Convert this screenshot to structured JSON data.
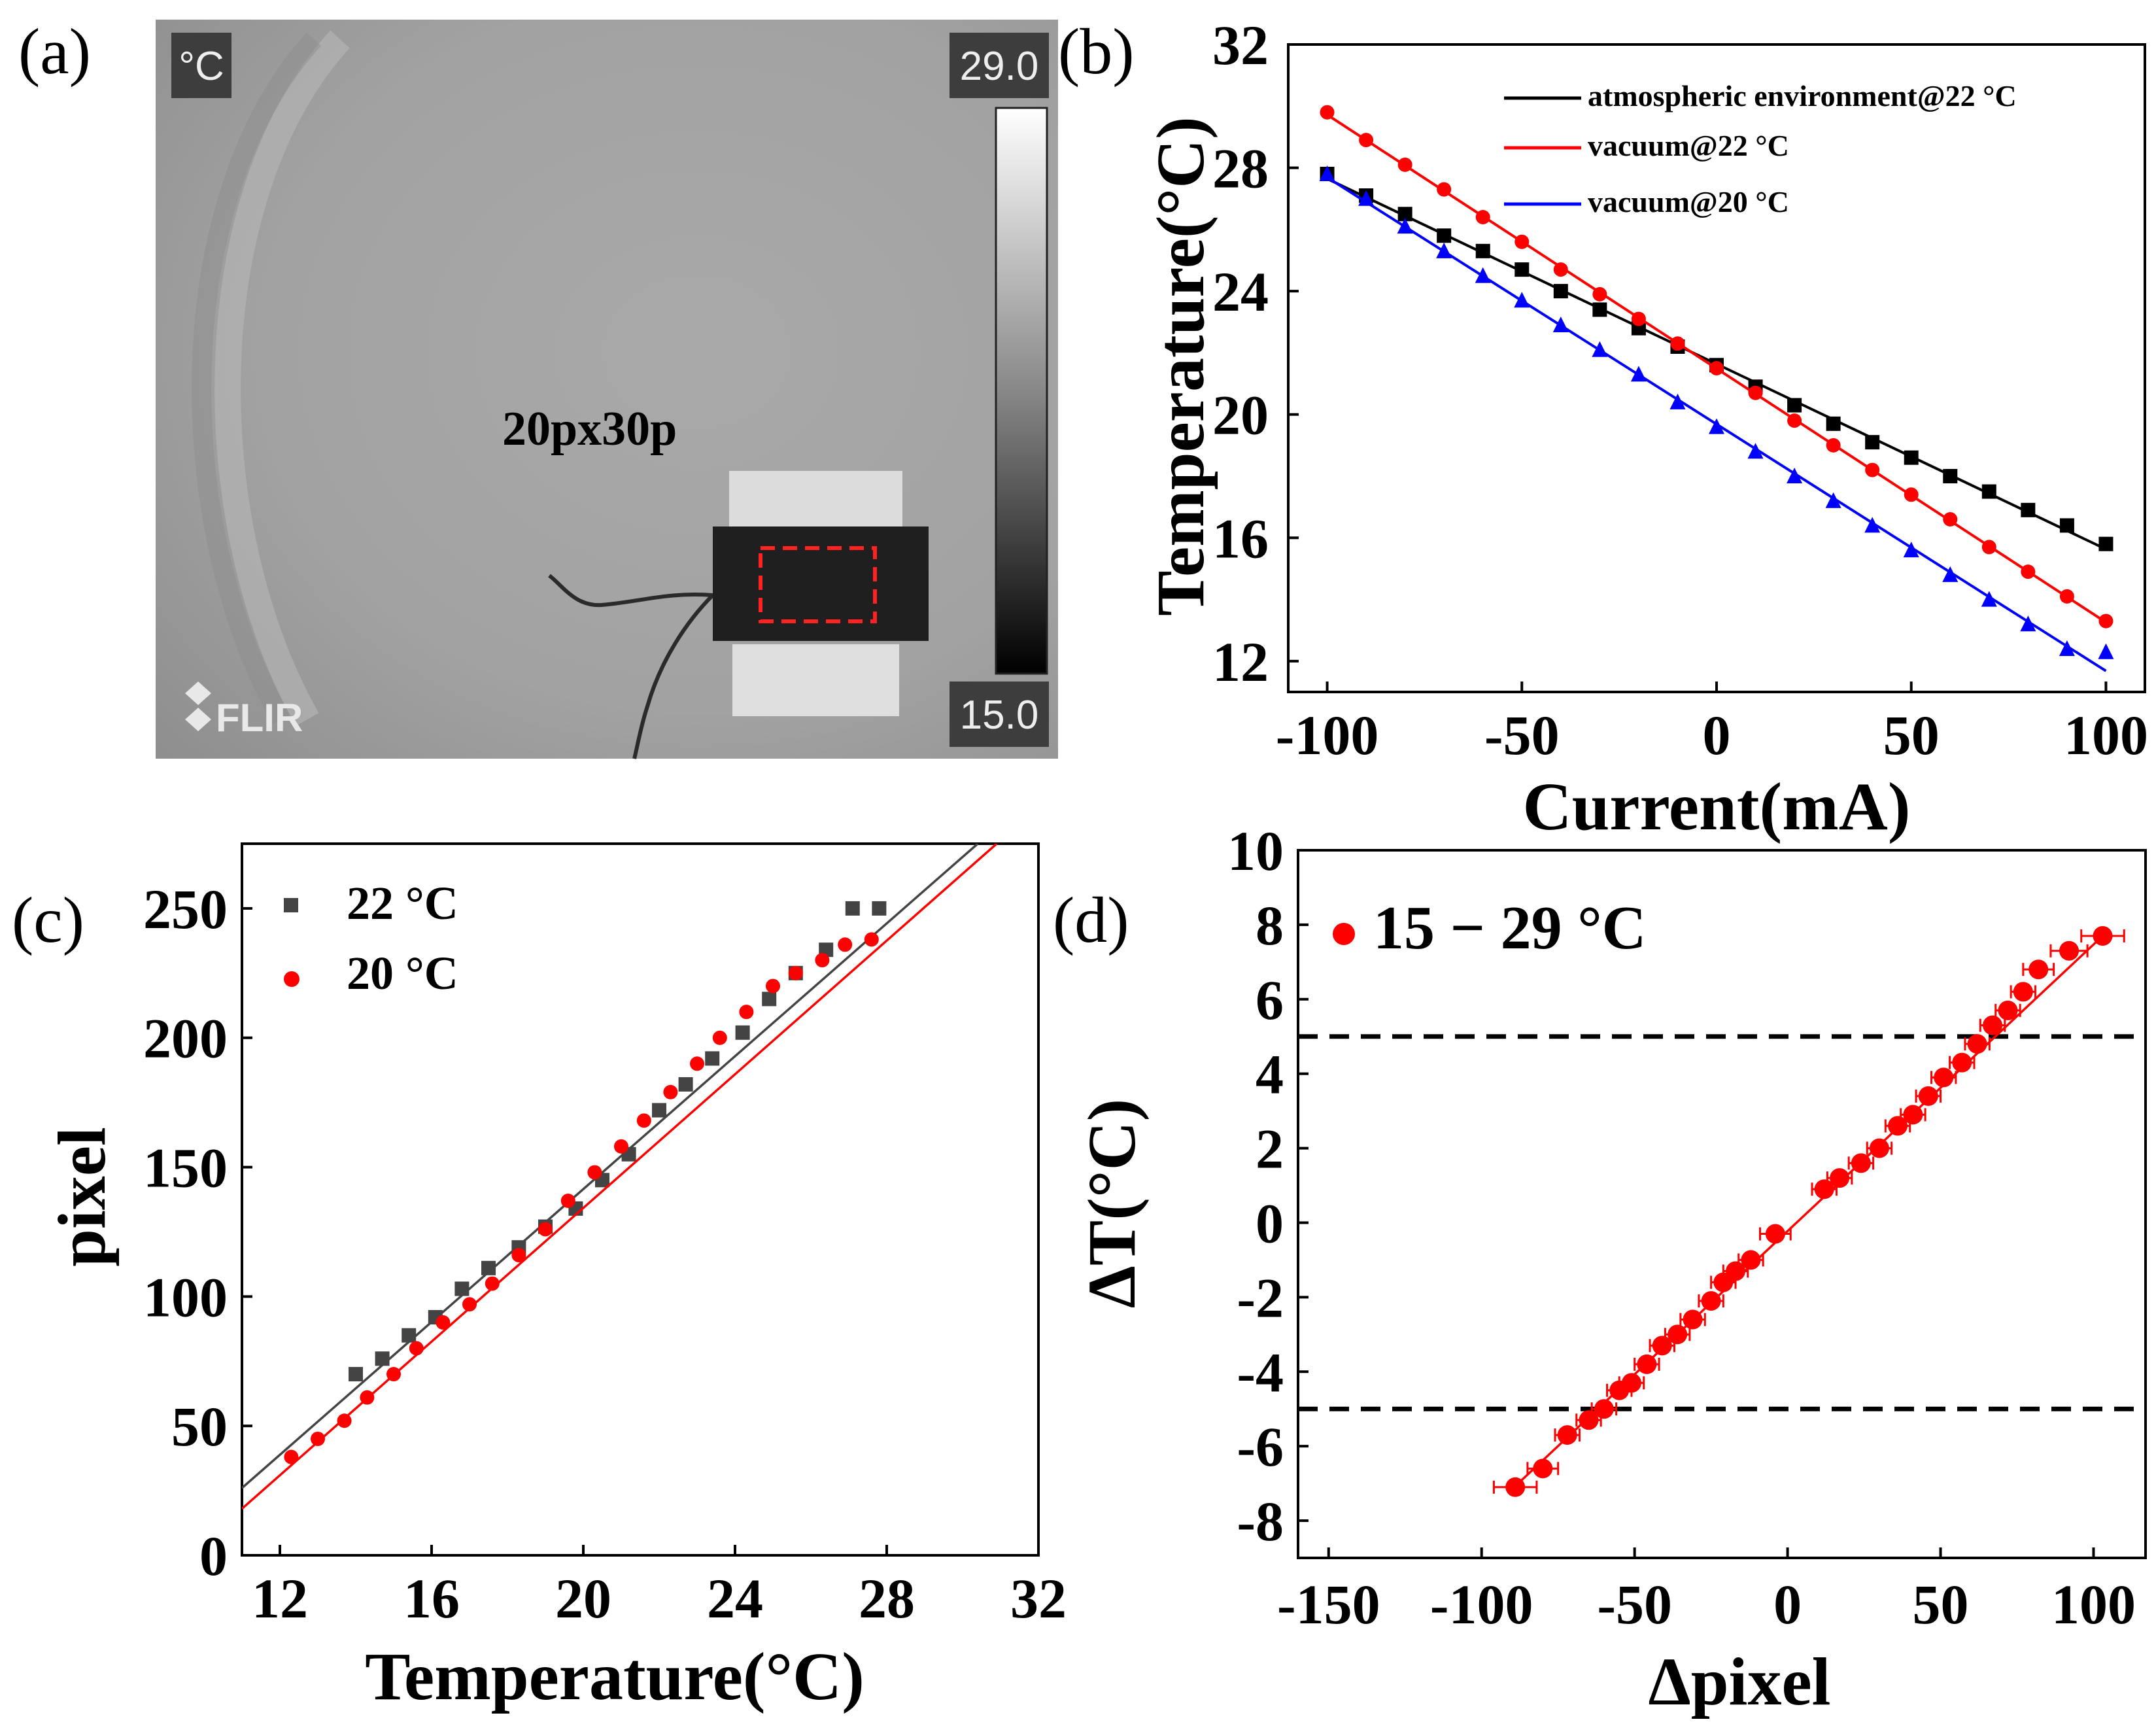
{
  "panel_a": {
    "label": "(a)",
    "unit": "°C",
    "scale_max": "29.0",
    "scale_min": "15.0",
    "roi_text": "20px30p",
    "logo": "FLIR",
    "colors": {
      "roi": "#ff2222",
      "background": "#a8a8a8"
    }
  },
  "chart_data": [
    {
      "id": "b",
      "panel_label": "(b)",
      "type": "line",
      "xlabel": "Current(mA)",
      "ylabel": "Temperature(°C)",
      "xlim": [
        -110,
        110
      ],
      "ylim": [
        11,
        32
      ],
      "xticks": [
        "-100",
        "-50",
        "0",
        "50",
        "100"
      ],
      "xtick_values": [
        -100,
        -50,
        0,
        50,
        100
      ],
      "yticks": [
        "12",
        "16",
        "20",
        "24",
        "28",
        "32"
      ],
      "ytick_values": [
        12,
        16,
        20,
        24,
        28,
        32
      ],
      "legend_position": "top-right",
      "x": [
        -100,
        -90,
        -80,
        -70,
        -60,
        -50,
        -40,
        -30,
        -20,
        -10,
        0,
        10,
        20,
        30,
        40,
        50,
        60,
        70,
        80,
        90,
        100
      ],
      "series": [
        {
          "name": "atmospheric environment@22 °C",
          "color": "#000000",
          "marker": "square",
          "values": [
            27.8,
            27.1,
            26.5,
            25.8,
            25.3,
            24.7,
            24.0,
            23.4,
            22.8,
            22.2,
            21.6,
            20.9,
            20.3,
            19.7,
            19.1,
            18.6,
            18.0,
            17.5,
            16.9,
            16.4,
            15.8
          ]
        },
        {
          "name": "vacuum@22 °C",
          "color": "#ff0000",
          "marker": "circle",
          "values": [
            29.8,
            28.9,
            28.1,
            27.3,
            26.4,
            25.6,
            24.7,
            23.9,
            23.1,
            22.3,
            21.5,
            20.7,
            19.8,
            19.0,
            18.2,
            17.4,
            16.6,
            15.7,
            14.9,
            14.1,
            13.3
          ]
        },
        {
          "name": "vacuum@20 °C",
          "color": "#0000ff",
          "marker": "triangle",
          "values": [
            27.8,
            27.0,
            26.1,
            25.3,
            24.5,
            23.7,
            22.9,
            22.1,
            21.3,
            20.4,
            19.6,
            18.8,
            18.0,
            17.2,
            16.4,
            15.6,
            14.8,
            14.0,
            13.2,
            12.4,
            12.3
          ]
        }
      ]
    },
    {
      "id": "c",
      "panel_label": "(c)",
      "type": "scatter",
      "xlabel": "Temperature(°C)",
      "ylabel": "pixel",
      "xlim": [
        11,
        32
      ],
      "ylim": [
        0,
        275
      ],
      "xticks": [
        "12",
        "16",
        "20",
        "24",
        "28",
        "32"
      ],
      "xtick_values": [
        12,
        16,
        20,
        24,
        28,
        32
      ],
      "yticks": [
        "0",
        "50",
        "100",
        "150",
        "200",
        "250"
      ],
      "ytick_values": [
        0,
        50,
        100,
        150,
        200,
        250
      ],
      "legend_position": "top-left",
      "series": [
        {
          "name": "22 °C",
          "color": "#444444",
          "marker": "square",
          "x": [
            14.0,
            14.7,
            15.4,
            16.1,
            16.8,
            17.5,
            18.3,
            19.0,
            19.8,
            20.5,
            21.2,
            22.0,
            22.7,
            23.4,
            24.2,
            24.9,
            25.6,
            26.4,
            27.1,
            27.8
          ],
          "y": [
            70,
            76,
            85,
            92,
            103,
            111,
            119,
            127,
            134,
            145,
            155,
            172,
            182,
            192,
            202,
            215,
            225,
            234,
            250,
            250
          ],
          "fit": [
            [
              11,
              26
            ],
            [
              30.4,
              275
            ]
          ]
        },
        {
          "name": "20 °C",
          "color": "#ff0000",
          "marker": "circle",
          "x": [
            12.3,
            13.0,
            13.7,
            14.3,
            15.0,
            15.6,
            16.3,
            17.0,
            17.6,
            18.3,
            19.0,
            19.6,
            20.3,
            21.0,
            21.6,
            22.3,
            23.0,
            23.6,
            24.3,
            25.0,
            25.6,
            26.3,
            26.9,
            27.6
          ],
          "y": [
            38,
            45,
            52,
            61,
            70,
            80,
            90,
            97,
            105,
            116,
            126,
            137,
            148,
            158,
            168,
            179,
            190,
            200,
            210,
            220,
            225,
            230,
            236,
            238
          ],
          "fit": [
            [
              11,
              18
            ],
            [
              30.9,
              275
            ]
          ]
        }
      ]
    },
    {
      "id": "d",
      "panel_label": "(d)",
      "type": "scatter",
      "xlabel": "Δpixel",
      "ylabel": "ΔT(°C)",
      "xlim": [
        -160,
        117
      ],
      "ylim": [
        -9,
        10
      ],
      "xticks": [
        "-150",
        "-100",
        "-50",
        "0",
        "50",
        "100"
      ],
      "xtick_values": [
        -150,
        -100,
        -50,
        0,
        50,
        100
      ],
      "yticks": [
        "-8",
        "-6",
        "-4",
        "-2",
        "0",
        "2",
        "4",
        "6",
        "8",
        "10"
      ],
      "ytick_values": [
        -8,
        -6,
        -4,
        -2,
        0,
        2,
        4,
        6,
        8,
        10
      ],
      "legend_position": "top-left",
      "thresholds": [
        5,
        -5
      ],
      "series": [
        {
          "name": "15 − 29 °C",
          "color": "#ff0000",
          "marker": "circle",
          "x": [
            -89,
            -80,
            -72,
            -65,
            -60,
            -55,
            -51,
            -46,
            -41,
            -36,
            -31,
            -25,
            -21,
            -17,
            -12,
            -4,
            12,
            17,
            24,
            30,
            36,
            41,
            46,
            51,
            57,
            62,
            67,
            72,
            77,
            82,
            92,
            103
          ],
          "y": [
            -7.1,
            -6.6,
            -5.7,
            -5.3,
            -5.0,
            -4.5,
            -4.3,
            -3.8,
            -3.3,
            -3.0,
            -2.6,
            -2.1,
            -1.6,
            -1.3,
            -1.0,
            -0.3,
            0.9,
            1.2,
            1.6,
            2.0,
            2.6,
            2.9,
            3.4,
            3.9,
            4.3,
            4.8,
            5.3,
            5.7,
            6.2,
            6.8,
            7.3,
            7.7
          ],
          "xerr": [
            7,
            5,
            4,
            4,
            4,
            4,
            4,
            4,
            4,
            4,
            4,
            4,
            4,
            4,
            4,
            5,
            4,
            4,
            4,
            4,
            4,
            4,
            4,
            4,
            4,
            4,
            4,
            4,
            4,
            5,
            6,
            7
          ],
          "fit": [
            [
              -90,
              -7.15
            ],
            [
              103,
              7.7
            ]
          ]
        }
      ]
    }
  ]
}
